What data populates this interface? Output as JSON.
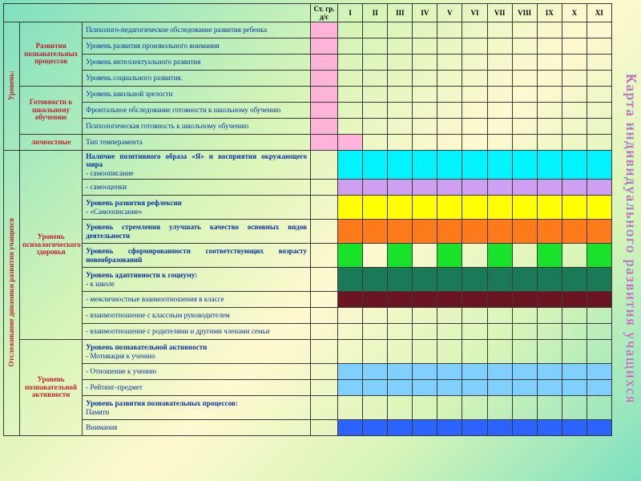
{
  "sideTitle": "Карта индивидуального развития учащихся",
  "headers": {
    "st": "Ст. гр. д/с",
    "grades": [
      "I",
      "II",
      "III",
      "IV",
      "V",
      "VI",
      "VII",
      "VIII",
      "IX",
      "X",
      "XI"
    ]
  },
  "colors": {
    "pink": "#fdb4d8",
    "cyan": "#00f3ff",
    "lilac": "#cfa0f2",
    "yellow": "#ffff00",
    "orange": "#ff7a1a",
    "green": "#19e22a",
    "darkgreen": "#1a7a57",
    "maroon": "#6b1422",
    "skyblue": "#7fd0ff",
    "blue": "#2b63ff"
  },
  "section1": {
    "rot": "Уровень:",
    "groups": [
      {
        "cat": "Развития познавательных процессов",
        "rows": [
          {
            "text": "Психолого-педагогическое обследование развития ребенка",
            "fill": {
              "color": "pink",
              "cols": [
                "st"
              ]
            }
          },
          {
            "text": "Уровень развития произвольного внимания",
            "fill": {
              "color": "pink",
              "cols": [
                "st"
              ]
            }
          },
          {
            "text": "Уровень интеллектуального развития",
            "fill": {
              "color": "pink",
              "cols": [
                "st"
              ]
            }
          },
          {
            "text": "Уровень социального развития.",
            "fill": {
              "color": "pink",
              "cols": [
                "st"
              ]
            }
          }
        ]
      },
      {
        "cat": "Готовности к школьному обучению",
        "rows": [
          {
            "text": "Уровень школьной зрелости",
            "fill": {
              "color": "pink",
              "cols": [
                "st"
              ]
            }
          },
          {
            "text": "Фронтальное обследование готовности к школьному обучению",
            "fill": {
              "color": "pink",
              "cols": [
                "st"
              ]
            },
            "justify": true
          },
          {
            "text": "Психологическая готовность к школьному обучению",
            "fill": {
              "color": "pink",
              "cols": [
                "st"
              ]
            }
          }
        ]
      },
      {
        "cat": "личностные",
        "rows": [
          {
            "text": "Тип темперамента",
            "fill": {
              "color": "pink",
              "cols": [
                "st",
                "I"
              ]
            }
          }
        ]
      }
    ]
  },
  "section2": {
    "rot": "Отслеживание динамики развития учащихся",
    "groups": [
      {
        "cat": "Уровень психологического здоровья",
        "rows": [
          {
            "text": "<b>Наличие позитивного образа «Я» и восприятия окружающего мира</b><br>- самоописание",
            "fill": {
              "color": "cyan",
              "cols": [
                "I",
                "II",
                "III",
                "IV",
                "V",
                "VI",
                "VII",
                "VIII",
                "IX",
                "X",
                "XI"
              ]
            },
            "tall": true,
            "justify": true
          },
          {
            "text": "- самооценки",
            "fill": {
              "color": "lilac",
              "cols": [
                "I",
                "II",
                "III",
                "IV",
                "V",
                "VI",
                "VII",
                "VIII",
                "IX",
                "X",
                "XI"
              ]
            }
          },
          {
            "text": "<b>Уровень развития рефлексии</b><br>- «Самоописание»",
            "fill": {
              "color": "yellow",
              "cols": [
                "I",
                "II",
                "III",
                "IV",
                "V",
                "VI",
                "VII",
                "VIII",
                "IX",
                "X",
                "XI"
              ]
            },
            "tall": true
          },
          {
            "text": "<b>Уровень стремления улучшать качество основных видов деятельности</b>",
            "fill": {
              "color": "orange",
              "cols": [
                "I",
                "II",
                "III",
                "IV",
                "V",
                "VI",
                "VII",
                "VIII",
                "IX",
                "X",
                "XI"
              ]
            },
            "tall": true,
            "justify": true
          },
          {
            "text": "<b>Уровень сформированности соответствующих возрасту новообразований</b>",
            "fill": {
              "color": "green",
              "cols": [
                "I",
                "III",
                "V",
                "VII",
                "IX",
                "XI"
              ]
            },
            "tall": true,
            "justify": true
          },
          {
            "text": "<b>Уровень адаптивности к социуму:</b><br>- к школе",
            "fill": {
              "color": "darkgreen",
              "cols": [
                "I",
                "II",
                "III",
                "IV",
                "V",
                "VI",
                "VII",
                "VIII",
                "IX",
                "X",
                "XI"
              ]
            },
            "tall": true
          },
          {
            "text": "- межличностные взаимоотношения в классе",
            "fill": {
              "color": "maroon",
              "cols": [
                "I",
                "II",
                "III",
                "IV",
                "V",
                "VI",
                "VII",
                "VIII",
                "IX",
                "X",
                "XI"
              ]
            }
          },
          {
            "text": "- взаимоотношение с классным руководителем"
          },
          {
            "text": "- взаимоотношение с родителями и другими членами семьи"
          }
        ]
      },
      {
        "cat": "Уровень познавательной активности",
        "rows": [
          {
            "text": "<b>Уровень познавательной активности</b><br>- Мотивация к учению",
            "tall": true
          },
          {
            "text": "- Отношение к учению",
            "fill": {
              "color": "skyblue",
              "cols": [
                "I",
                "II",
                "III",
                "IV",
                "V",
                "VI",
                "VII",
                "VIII",
                "IX",
                "X",
                "XI"
              ]
            }
          },
          {
            "text": "- Рейтинг-предмет",
            "fill": {
              "color": "skyblue",
              "cols": [
                "I",
                "II",
                "III",
                "IV",
                "V",
                "VI",
                "VII",
                "VIII",
                "IX",
                "X",
                "XI"
              ]
            }
          },
          {
            "text": "<b>Уровень развития познавательных процессов:</b><br>Памяти",
            "tall": true
          },
          {
            "text": "Внимания",
            "fill": {
              "color": "blue",
              "cols": [
                "I",
                "II",
                "III",
                "IV",
                "V",
                "VI",
                "VII",
                "VIII",
                "IX",
                "X",
                "XI"
              ]
            }
          }
        ]
      }
    ]
  }
}
